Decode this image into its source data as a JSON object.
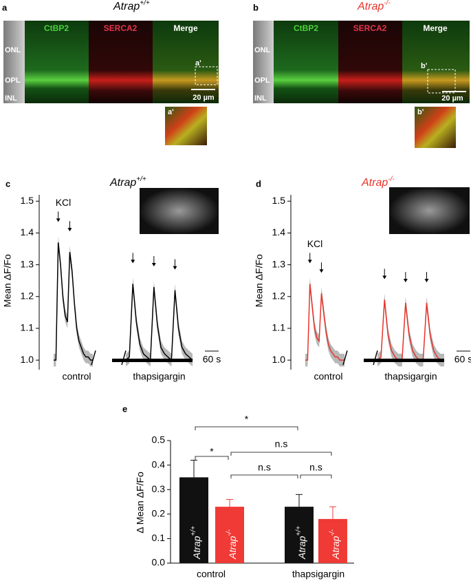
{
  "panel_a": {
    "label": "a",
    "title": "Atrap",
    "title_sup": "+/+",
    "title_color": "#000000",
    "channels": [
      "CtBP2",
      "SERCA2",
      "Merge"
    ],
    "layers": [
      "ONL",
      "OPL",
      "INL"
    ],
    "roi": "a'",
    "scale_bar": "20 µm",
    "inset_label": "a'"
  },
  "panel_b": {
    "label": "b",
    "title": "Atrap",
    "title_sup": "-/-",
    "title_color": "#e8332a",
    "channels": [
      "CtBP2",
      "SERCA2",
      "Merge"
    ],
    "layers": [
      "ONL",
      "OPL",
      "INL"
    ],
    "roi": "b'",
    "scale_bar": "20 µm",
    "inset_label": "b'"
  },
  "chart_data": [
    {
      "type": "trace",
      "label": "c",
      "title": "Atrap",
      "title_sup": "+/+",
      "title_color": "#000000",
      "ylabel": "Mean ΔF/Fo",
      "ylim": [
        0.97,
        1.52
      ],
      "yticks": [
        {
          "value": 1,
          "label": "1.0"
        },
        1.1,
        1.2,
        1.3,
        1.4,
        1.5
      ],
      "color": "#000000",
      "band_color": "#b8b8b8",
      "stimulus": "KCl",
      "scale_bar": "60 s",
      "series": [
        {
          "name": "control",
          "sem": 0.02,
          "values": [
            1.0,
            1.0,
            1.37,
            1.3,
            1.2,
            1.14,
            1.12,
            1.34,
            1.28,
            1.18,
            1.1,
            1.06,
            1.04,
            1.02,
            1.01,
            1.01,
            1.0,
            1.0
          ]
        },
        {
          "name": "thapsigargin",
          "sem": 0.02,
          "values": [
            1.0,
            1.01,
            1.24,
            1.12,
            1.05,
            1.02,
            1.01,
            1.0,
            1.23,
            1.11,
            1.04,
            1.02,
            1.01,
            1.0,
            1.22,
            1.1,
            1.04,
            1.02,
            1.01,
            1.0
          ]
        }
      ]
    },
    {
      "type": "trace",
      "label": "d",
      "title": "Atrap",
      "title_sup": "-/-",
      "title_color": "#e8332a",
      "ylabel": "Mean ΔF/Fo",
      "ylim": [
        0.97,
        1.52
      ],
      "yticks": [
        {
          "value": 1,
          "label": "1.0"
        },
        1.1,
        1.2,
        1.3,
        1.4,
        1.5
      ],
      "color": "#e8332a",
      "band_color": "#b8b8b8",
      "stimulus": "KCl",
      "scale_bar": "60 s",
      "series": [
        {
          "name": "control",
          "sem": 0.02,
          "values": [
            1.0,
            1.0,
            1.24,
            1.17,
            1.1,
            1.07,
            1.06,
            1.21,
            1.15,
            1.09,
            1.05,
            1.03,
            1.02,
            1.01,
            1.01,
            1.0,
            1.0,
            1.0
          ]
        },
        {
          "name": "thapsigargin",
          "sem": 0.02,
          "values": [
            1.0,
            1.01,
            1.19,
            1.08,
            1.03,
            1.01,
            1.0,
            1.0,
            1.18,
            1.08,
            1.03,
            1.01,
            1.0,
            1.0,
            1.18,
            1.08,
            1.03,
            1.01,
            1.0,
            1.0
          ]
        }
      ]
    },
    {
      "type": "bar",
      "label": "e",
      "ylabel": "Δ Mean ΔF/Fo",
      "categories": [
        "control",
        "thapsigargin"
      ],
      "ylim": [
        0,
        0.5
      ],
      "yticks": [
        {
          "value": 0,
          "label": "0.0"
        },
        0.1,
        0.2,
        0.3,
        0.4,
        0.5
      ],
      "series": [
        {
          "name": "Atrap",
          "name_sup": "+/+",
          "color": "#111111",
          "values": [
            0.35,
            0.23
          ],
          "errors": [
            0.07,
            0.05
          ]
        },
        {
          "name": "Atrap",
          "name_sup": "-/-",
          "color": "#f03a35",
          "values": [
            0.23,
            0.18
          ],
          "errors": [
            0.03,
            0.05
          ]
        }
      ],
      "annotations": [
        "*",
        "*",
        "n.s",
        "n.s",
        "n.s"
      ]
    }
  ]
}
